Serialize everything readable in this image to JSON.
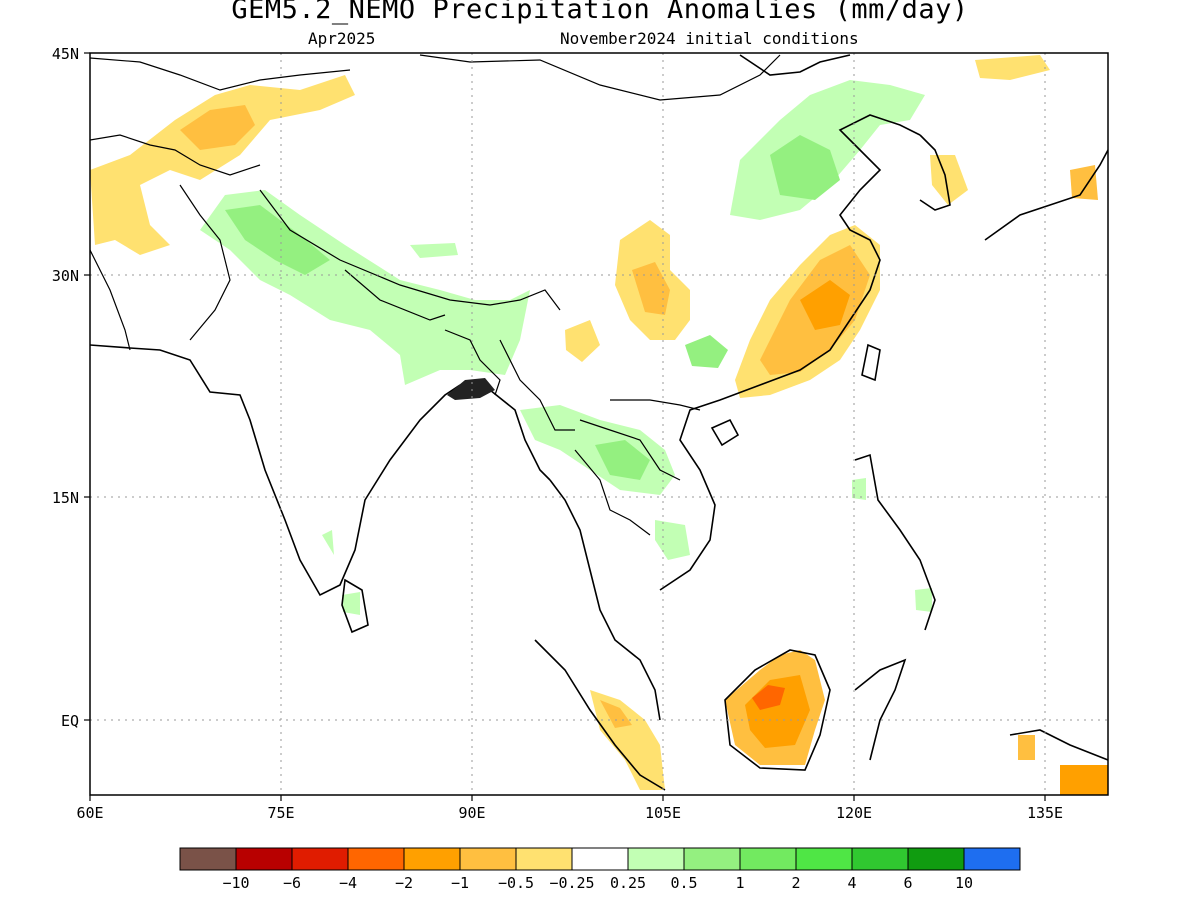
{
  "header": {
    "title": "GEM5.2_NEMO Precipitation Anomalies (mm/day)",
    "valid_month": "Apr2025",
    "init_conditions": "November2024 initial conditions"
  },
  "map": {
    "lon_ticks": [
      "60E",
      "75E",
      "90E",
      "105E",
      "120E",
      "135E"
    ],
    "lat_ticks": [
      "45N",
      "30N",
      "15N",
      "EQ"
    ],
    "lon_values": [
      60,
      75,
      90,
      105,
      120,
      135
    ],
    "lat_values": [
      45,
      30,
      15,
      0
    ],
    "lon_range": [
      60,
      140
    ],
    "lat_range": [
      -5,
      45
    ],
    "grid": "dotted"
  },
  "legend": {
    "swatch_colors": [
      "#7a5248",
      "#b80000",
      "#e01c00",
      "#ff6600",
      "#ffa000",
      "#ffbf40",
      "#ffe170",
      "#ffffff",
      "#c2ffb4",
      "#94f080",
      "#72ea60",
      "#4fe645",
      "#30c830",
      "#109c10",
      "#1e6ef0"
    ],
    "labels": [
      "−10",
      "−6",
      "−4",
      "−2",
      "−1",
      "−0.5",
      "−0.25",
      "0.25",
      "0.5",
      "1",
      "2",
      "4",
      "6",
      "10"
    ]
  },
  "colors": {
    "light_orange": "#ffe170",
    "orange": "#ffbf40",
    "dark_orange": "#ffa000",
    "red_orange": "#ff6600",
    "light_green": "#c2ffb4",
    "green": "#94f080",
    "bright_green": "#72ea60"
  }
}
